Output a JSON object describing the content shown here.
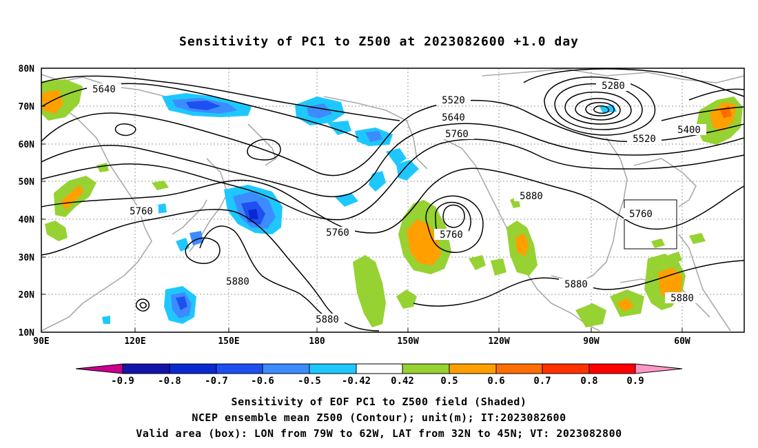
{
  "title": "Sensitivity of PC1 to Z500 at 2023082600 +1.0 day",
  "map": {
    "lat_labels": [
      "80N",
      "70N",
      "60N",
      "50N",
      "40N",
      "30N",
      "20N",
      "10N"
    ],
    "lon_labels": [
      "90E",
      "120E",
      "150E",
      "180",
      "150W",
      "120W",
      "90W",
      "60W"
    ],
    "contour_labels": [
      {
        "text": "5640"
      },
      {
        "text": "5520"
      },
      {
        "text": "5640"
      },
      {
        "text": "5760"
      },
      {
        "text": "5280"
      },
      {
        "text": "5400"
      },
      {
        "text": "5520"
      },
      {
        "text": "5760"
      },
      {
        "text": "5760"
      },
      {
        "text": "5760"
      },
      {
        "text": "5880"
      },
      {
        "text": "5880"
      },
      {
        "text": "5880"
      },
      {
        "text": "5880"
      },
      {
        "text": "5880"
      },
      {
        "text": "5760"
      }
    ],
    "box": {
      "lon_from": "79W",
      "lon_to": "62W",
      "lat_from": "32N",
      "lat_to": "45N"
    }
  },
  "colorbar": {
    "labels": [
      "-0.9",
      "-0.8",
      "-0.7",
      "-0.6",
      "-0.5",
      "-0.42",
      "0.42",
      "0.5",
      "0.6",
      "0.7",
      "0.8",
      "0.9"
    ],
    "colors": [
      "#c8008c",
      "#1414aa",
      "#0a28d2",
      "#1e50f0",
      "#3c8cff",
      "#1ec8ff",
      "#ffffff",
      "#96d232",
      "#ffa000",
      "#ff6e00",
      "#ff3200",
      "#ff0000",
      "#ff96c8"
    ]
  },
  "footer": {
    "line1": "Sensitivity of EOF PC1 to Z500 field (Shaded)",
    "line2": "NCEP ensemble mean Z500 (Contour); unit(m); IT:2023082600",
    "line3": "Valid area (box): LON from 79W to 62W, LAT from 32N to 45N; VT: 2023082800"
  }
}
